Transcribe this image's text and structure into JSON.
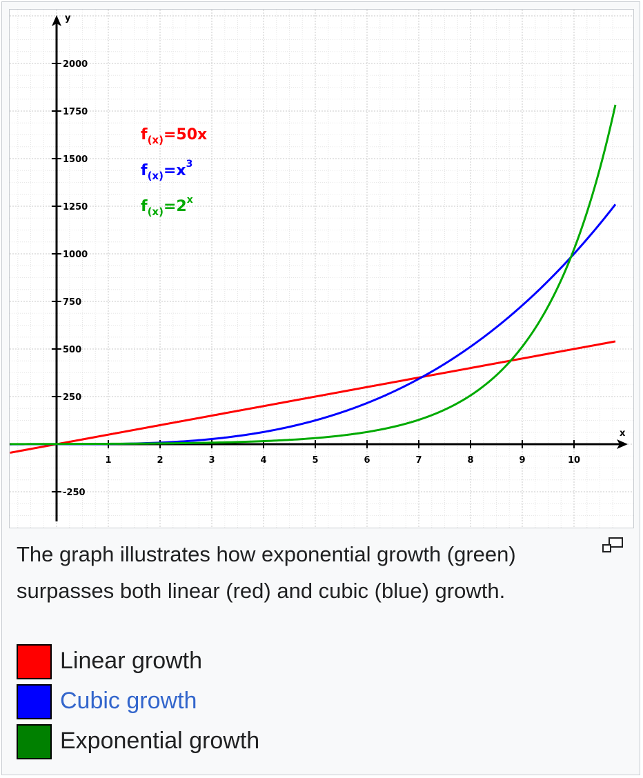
{
  "colors": {
    "linear": "#ff0000",
    "cubic": "#0000ff",
    "exponential": "#00aa00",
    "legend_linear": "#ff0000",
    "legend_cubic": "#0000ff",
    "legend_exponential": "#008000",
    "link": "#3366cc"
  },
  "chart_data": {
    "type": "line",
    "xlabel": "x",
    "ylabel": "y",
    "x_ticks": [
      "1",
      "2",
      "3",
      "4",
      "5",
      "6",
      "7",
      "8",
      "9",
      "10"
    ],
    "y_ticks": [
      "-250",
      "250",
      "500",
      "750",
      "1000",
      "1250",
      "1500",
      "1750",
      "2000"
    ],
    "xlim": [
      -0.9,
      10.8
    ],
    "ylim": [
      -400,
      2250
    ],
    "grid": true,
    "series": [
      {
        "key": "linear",
        "function": "50x",
        "color": "#ff0000",
        "x": [
          -0.9,
          0,
          2,
          4,
          6,
          8,
          10,
          10.8
        ],
        "y": [
          -45,
          0,
          100,
          200,
          300,
          400,
          500,
          540
        ]
      },
      {
        "key": "cubic",
        "function": "x^3",
        "color": "#0000ff",
        "x": [
          -0.9,
          0,
          2,
          4,
          6,
          8,
          10,
          10.8
        ],
        "y": [
          -0.73,
          0,
          8,
          64,
          216,
          512,
          1000,
          1260
        ]
      },
      {
        "key": "exponential",
        "function": "2^x",
        "color": "#00aa00",
        "x": [
          -0.9,
          0,
          2,
          4,
          6,
          8,
          10,
          10.8
        ],
        "y": [
          0.54,
          1,
          4,
          16,
          64,
          256,
          1024,
          1783
        ]
      }
    ],
    "annotations": [
      {
        "key": "linear",
        "prefix": "f",
        "sub": "(x)",
        "eq": "=50x",
        "sup": ""
      },
      {
        "key": "cubic",
        "prefix": "f",
        "sub": "(x)",
        "eq": "=x",
        "sup": "3"
      },
      {
        "key": "exponential",
        "prefix": "f",
        "sub": "(x)",
        "eq": "=2",
        "sup": "x"
      }
    ]
  },
  "caption": {
    "text": "The graph illustrates how exponential growth (green) surpasses both linear (red) and cubic (blue) growth.",
    "magnify_icon": "magnify-icon"
  },
  "legend": [
    {
      "label": "Linear growth",
      "color": "#ff0000",
      "link": false
    },
    {
      "label": "Cubic growth",
      "color": "#0000ff",
      "link": true
    },
    {
      "label": "Exponential growth",
      "color": "#008000",
      "link": false
    }
  ]
}
